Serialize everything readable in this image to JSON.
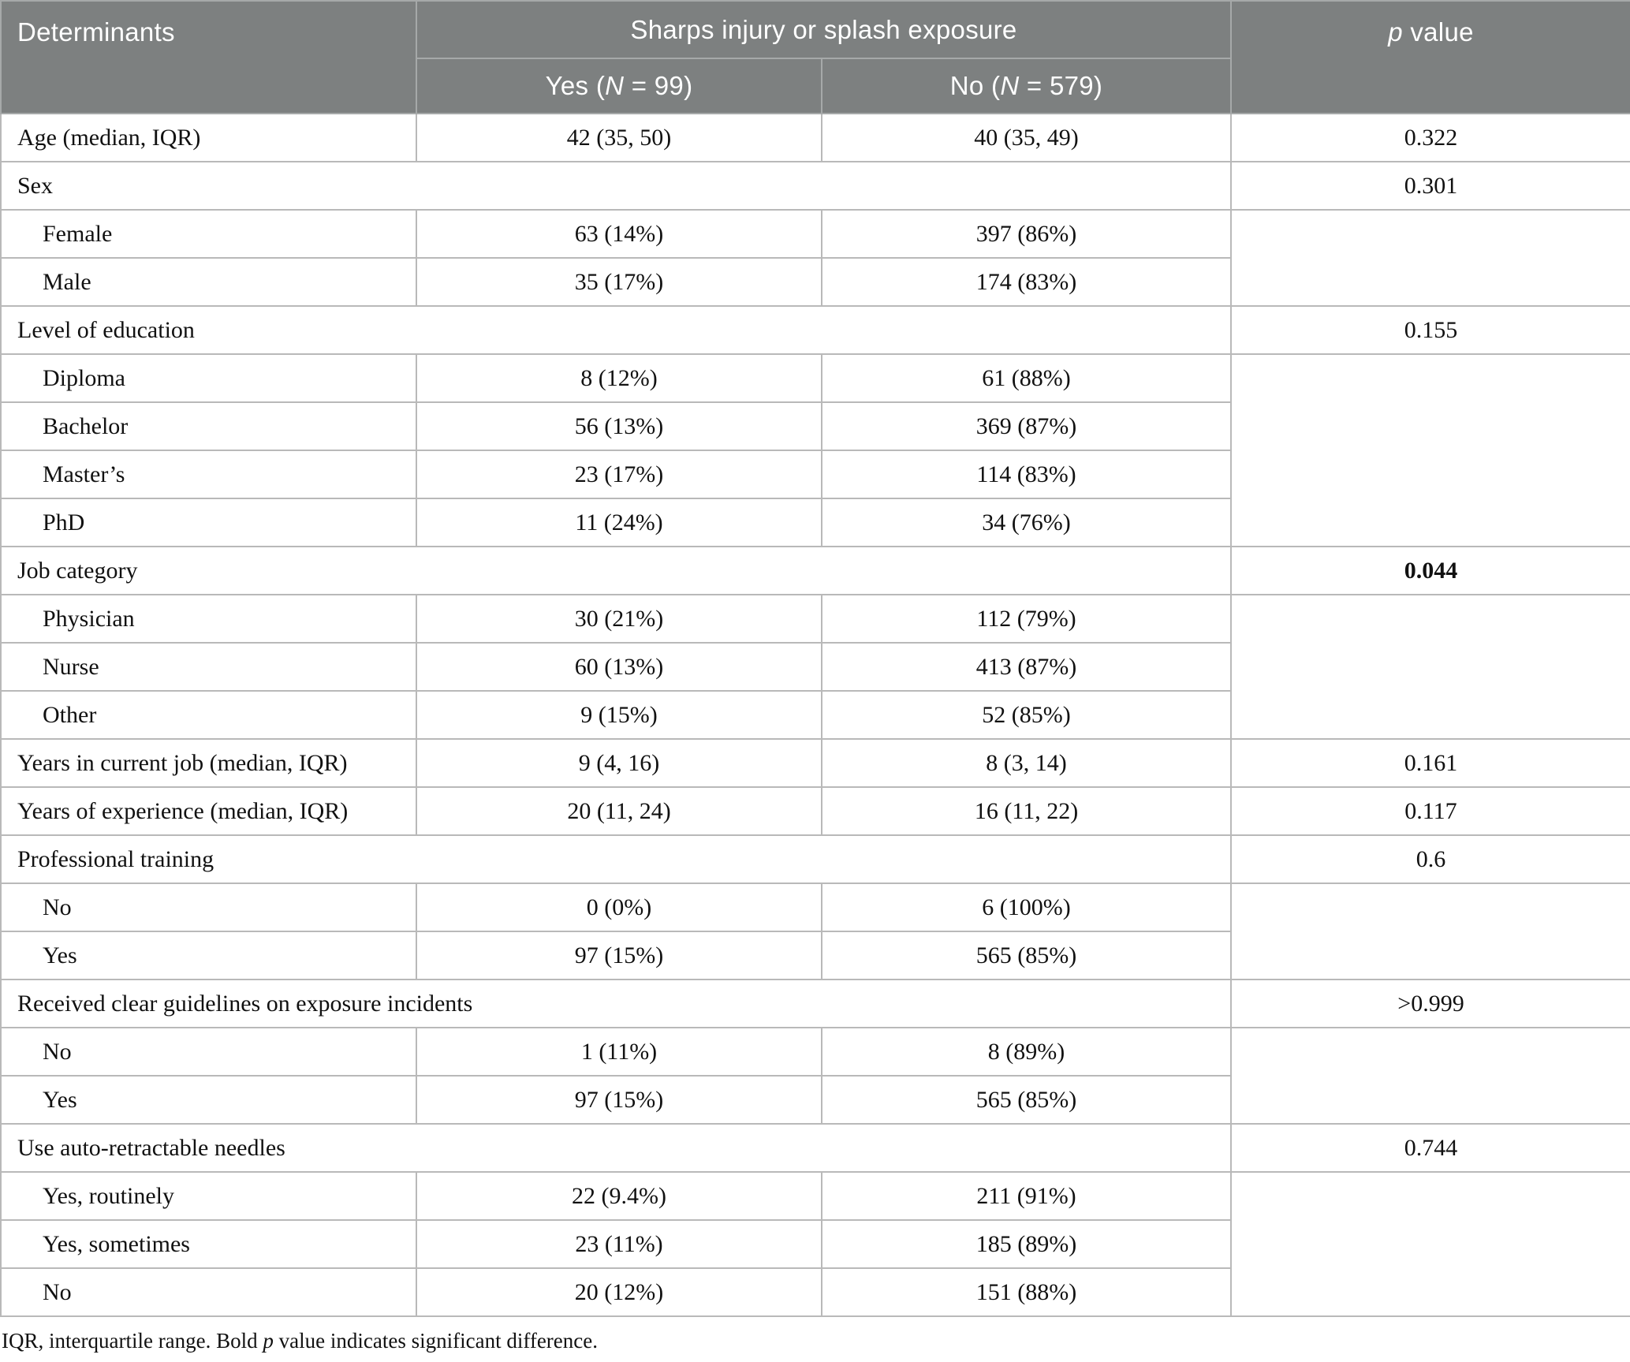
{
  "table": {
    "header": {
      "determinants": "Determinants",
      "group": "Sharps injury or splash exposure",
      "yes": {
        "pre": "Yes (",
        "italic": "N",
        "post": " = 99)"
      },
      "no": {
        "pre": "No (",
        "italic": "N",
        "post": " = 579)"
      },
      "p": {
        "italic": "p",
        "post": " value"
      }
    },
    "rows": [
      {
        "type": "data",
        "label": "Age (median, IQR)",
        "yes": "42 (35, 50)",
        "no": "40 (35, 49)",
        "p": "0.322"
      },
      {
        "type": "section",
        "label": "Sex",
        "p": "0.301"
      },
      {
        "type": "sub",
        "label": "Female",
        "yes": "63 (14%)",
        "no": "397 (86%)"
      },
      {
        "type": "sub",
        "label": "Male",
        "yes": "35 (17%)",
        "no": "174 (83%)"
      },
      {
        "type": "section",
        "label": "Level of education",
        "p": "0.155"
      },
      {
        "type": "sub",
        "label": "Diploma",
        "yes": "8 (12%)",
        "no": "61 (88%)"
      },
      {
        "type": "sub",
        "label": "Bachelor",
        "yes": "56 (13%)",
        "no": "369 (87%)"
      },
      {
        "type": "sub",
        "label": "Master’s",
        "yes": "23 (17%)",
        "no": "114 (83%)"
      },
      {
        "type": "sub",
        "label": "PhD",
        "yes": "11 (24%)",
        "no": "34 (76%)"
      },
      {
        "type": "section",
        "label": "Job category",
        "p": "0.044",
        "bold": true
      },
      {
        "type": "sub",
        "label": "Physician",
        "yes": "30 (21%)",
        "no": "112 (79%)"
      },
      {
        "type": "sub",
        "label": "Nurse",
        "yes": "60 (13%)",
        "no": "413 (87%)"
      },
      {
        "type": "sub",
        "label": "Other",
        "yes": "9 (15%)",
        "no": "52 (85%)"
      },
      {
        "type": "data",
        "label": "Years in current job (median, IQR)",
        "yes": "9 (4, 16)",
        "no": "8 (3, 14)",
        "p": "0.161"
      },
      {
        "type": "data",
        "label": "Years of experience (median, IQR)",
        "yes": "20 (11, 24)",
        "no": "16 (11, 22)",
        "p": "0.117"
      },
      {
        "type": "section",
        "label": "Professional training",
        "p": "0.6"
      },
      {
        "type": "sub",
        "label": "No",
        "yes": "0 (0%)",
        "no": "6 (100%)"
      },
      {
        "type": "sub",
        "label": "Yes",
        "yes": "97 (15%)",
        "no": "565 (85%)"
      },
      {
        "type": "section",
        "label": "Received clear guidelines on exposure incidents",
        "p": ">0.999"
      },
      {
        "type": "sub",
        "label": "No",
        "yes": "1 (11%)",
        "no": "8 (89%)"
      },
      {
        "type": "sub",
        "label": "Yes",
        "yes": "97 (15%)",
        "no": "565 (85%)"
      },
      {
        "type": "section",
        "label": "Use auto-retractable needles",
        "p": "0.744"
      },
      {
        "type": "sub",
        "label": "Yes, routinely",
        "yes": "22 (9.4%)",
        "no": "211 (91%)"
      },
      {
        "type": "sub",
        "label": "Yes, sometimes",
        "yes": "23 (11%)",
        "no": "185 (89%)"
      },
      {
        "type": "sub",
        "label": "No",
        "yes": "20 (12%)",
        "no": "151 (88%)"
      }
    ],
    "footnote": {
      "pre": "IQR, interquartile range. Bold ",
      "italic": "p",
      "post": " value indicates significant difference."
    }
  },
  "colors": {
    "header_bg": "#7d8080",
    "header_text": "#ffffff",
    "header_divider": "#a6a9a9",
    "body_border": "#b9b9b9",
    "body_text": "#111111"
  }
}
